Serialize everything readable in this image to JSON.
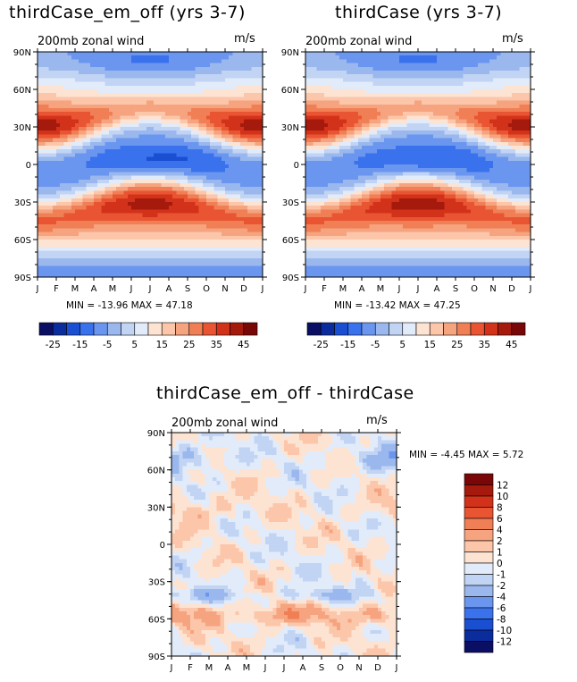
{
  "chart_data": [
    {
      "type": "heatmap",
      "title": "thirdCase_em_off (yrs 3-7)",
      "subtitle": "200mb zonal wind",
      "units": "m/s",
      "x_ticks": [
        "J",
        "F",
        "M",
        "A",
        "M",
        "J",
        "J",
        "A",
        "S",
        "O",
        "N",
        "D",
        "J"
      ],
      "y_ticks": [
        "90N",
        "60N",
        "30N",
        "0",
        "30S",
        "60S",
        "90S"
      ],
      "stats": "MIN = -13.96 MAX =  47.18",
      "min": -13.96,
      "max": 47.18,
      "colorbar_ticks": [
        "-25",
        "-15",
        "-5",
        "5",
        "15",
        "25",
        "35",
        "45"
      ],
      "colorbar_levels": [
        -30,
        -25,
        -20,
        -15,
        -10,
        -5,
        0,
        5,
        10,
        15,
        20,
        25,
        30,
        35,
        40,
        45,
        50
      ],
      "features": {
        "nh_jet_peak_lat": 30,
        "nh_jet_winter_max": 47,
        "nh_jet_summer_max": 22,
        "sh_jet_peak_lat": -30,
        "sh_jet_winter_max": 46,
        "sh_jet_summer_max": 28,
        "tropical_easterly_min": -14
      }
    },
    {
      "type": "heatmap",
      "title": "thirdCase (yrs 3-7)",
      "subtitle": "200mb zonal wind",
      "units": "m/s",
      "x_ticks": [
        "J",
        "F",
        "M",
        "A",
        "M",
        "J",
        "J",
        "A",
        "S",
        "O",
        "N",
        "D",
        "J"
      ],
      "y_ticks": [
        "90N",
        "60N",
        "30N",
        "0",
        "30S",
        "60S",
        "90S"
      ],
      "stats": "MIN = -13.42 MAX =  47.25",
      "min": -13.42,
      "max": 47.25,
      "colorbar_ticks": [
        "-25",
        "-15",
        "-5",
        "5",
        "15",
        "25",
        "35",
        "45"
      ],
      "colorbar_levels": [
        -30,
        -25,
        -20,
        -15,
        -10,
        -5,
        0,
        5,
        10,
        15,
        20,
        25,
        30,
        35,
        40,
        45,
        50
      ],
      "features": {
        "nh_jet_peak_lat": 30,
        "nh_jet_winter_max": 47,
        "nh_jet_summer_max": 22,
        "sh_jet_peak_lat": -30,
        "sh_jet_winter_max": 47,
        "sh_jet_summer_max": 28,
        "tropical_easterly_min": -13
      }
    },
    {
      "type": "heatmap",
      "title": "thirdCase_em_off - thirdCase",
      "subtitle": "200mb zonal wind",
      "units": "m/s",
      "x_ticks": [
        "J",
        "F",
        "M",
        "A",
        "M",
        "J",
        "J",
        "A",
        "S",
        "O",
        "N",
        "D",
        "J"
      ],
      "y_ticks": [
        "90N",
        "60N",
        "30N",
        "0",
        "30S",
        "60S",
        "90S"
      ],
      "stats": "MIN =  -4.45 MAX =   5.72",
      "min": -4.45,
      "max": 5.72,
      "colorbar_ticks": [
        "12",
        "10",
        "8",
        "6",
        "4",
        "2",
        "1",
        "0",
        "-1",
        "-2",
        "-4",
        "-6",
        "-8",
        "-10",
        "-12"
      ],
      "colorbar_levels": [
        -14,
        -12,
        -10,
        -8,
        -6,
        -4,
        -2,
        -1,
        0,
        1,
        2,
        4,
        6,
        8,
        10,
        12,
        14
      ]
    }
  ],
  "colors": {
    "scale_16": [
      "#0a0f63",
      "#0b2c9c",
      "#1b4fd2",
      "#3a72ee",
      "#6b96ef",
      "#9ab8ee",
      "#c1d4f4",
      "#e2ebfa",
      "#fde3d2",
      "#fbc6aa",
      "#f6a37f",
      "#f07f56",
      "#e95532",
      "#d2321a",
      "#a51a0c",
      "#7a0707"
    ],
    "scale_diff": [
      "#0a0f63",
      "#0b2c9c",
      "#1b4fd2",
      "#3a72ee",
      "#6b96ef",
      "#9ab8ee",
      "#c1d4f4",
      "#e2ebfa",
      "#fde3d2",
      "#fbc6aa",
      "#f6a37f",
      "#f07f56",
      "#e95532",
      "#d2321a",
      "#a51a0c",
      "#7a0707"
    ]
  }
}
